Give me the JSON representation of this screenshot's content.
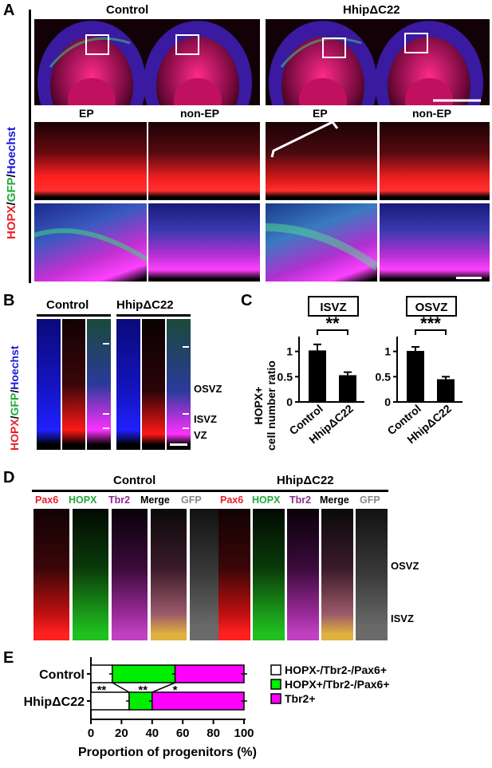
{
  "panel_A": {
    "label": "A",
    "group_control": "Control",
    "group_mutant": "HhipΔC22",
    "sub_ep": "EP",
    "sub_nonep": "non-EP",
    "stain_hopx": "HOPX",
    "stain_gfp": "GFP",
    "stain_hoechst": "Hoechst",
    "sep": "/"
  },
  "panel_B": {
    "label": "B",
    "group_control": "Control",
    "group_mutant": "HhipΔC22",
    "stain_hopx": "HOPX",
    "stain_gfp": "GFP",
    "stain_hoechst": "Hoechst",
    "sep": "/",
    "zone_osvz": "OSVZ",
    "zone_isvz": "ISVZ",
    "zone_vz": "VZ"
  },
  "panel_C": {
    "label": "C",
    "ylabel_line1": "HOPX+",
    "ylabel_line2": "cell number ratio",
    "charts": [
      {
        "title": "ISVZ",
        "sig": "**"
      },
      {
        "title": "OSVZ",
        "sig": "***"
      }
    ]
  },
  "panel_D": {
    "label": "D",
    "group_control": "Control",
    "group_mutant": "HhipΔC22",
    "channels": [
      "Pax6",
      "HOPX",
      "Tbr2",
      "Merge",
      "GFP"
    ],
    "zone_osvz": "OSVZ",
    "zone_isvz": "ISVZ"
  },
  "panel_E": {
    "label": "E",
    "sig_labels": [
      "**",
      "**",
      "*"
    ]
  },
  "colors": {
    "hopx_red": "#e8202a",
    "gfp_green": "#22a838",
    "hoechst_blue": "#1a1ad8",
    "tbr2_purple": "#8a2a8a",
    "green_bar": "#00ee00",
    "magenta_bar": "#ff00ff"
  },
  "chart_data": [
    {
      "type": "bar",
      "title": "ISVZ",
      "ylabel": "HOPX+ cell number ratio",
      "categories": [
        "Control",
        "HhipΔC22"
      ],
      "values": [
        1.02,
        0.53
      ],
      "errors": [
        0.12,
        0.06
      ],
      "ylim": [
        0,
        1.2
      ],
      "yticks": [
        0,
        0.5,
        1
      ],
      "significance": "**"
    },
    {
      "type": "bar",
      "title": "OSVZ",
      "ylabel": "HOPX+ cell number ratio",
      "categories": [
        "Control",
        "HhipΔC22"
      ],
      "values": [
        1.01,
        0.45
      ],
      "errors": [
        0.08,
        0.05
      ],
      "ylim": [
        0,
        1.2
      ],
      "yticks": [
        0,
        0.5,
        1
      ],
      "significance": "***"
    },
    {
      "type": "bar",
      "orientation": "horizontal-stacked",
      "xlabel": "Proportion of progenitors (%)",
      "xlim": [
        0,
        100
      ],
      "xticks": [
        0,
        20,
        40,
        60,
        80,
        100
      ],
      "categories": [
        "Control",
        "HhipΔC22"
      ],
      "series": [
        {
          "name": "HOPX-/Tbr2-/Pax6+",
          "color": "#ffffff",
          "values": [
            14,
            25
          ]
        },
        {
          "name": "HOPX+/Tbr2-/Pax6+",
          "color": "#00ee00",
          "values": [
            41,
            15
          ]
        },
        {
          "name": "Tbr2+",
          "color": "#ff00ff",
          "values": [
            45,
            60
          ]
        }
      ],
      "legend": "right",
      "significance": [
        "**",
        "**",
        "*"
      ]
    }
  ]
}
